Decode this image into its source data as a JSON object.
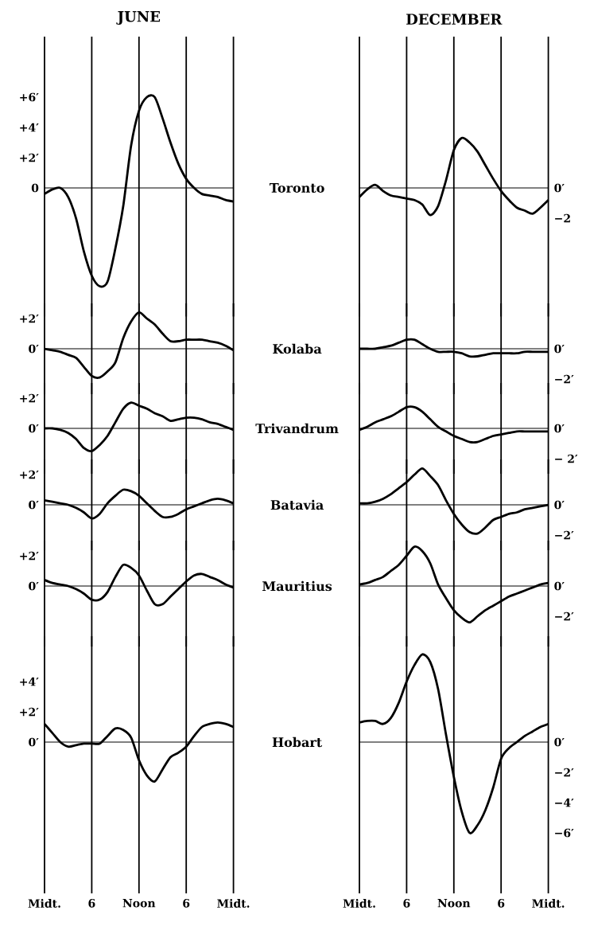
{
  "chart_data": [
    {
      "type": "line",
      "title": "JUNE",
      "annotations": [
        "Toronto"
      ],
      "color": "#000000",
      "categories": [
        null,
        null,
        null,
        null,
        null,
        null,
        null,
        null,
        null,
        null,
        null,
        null,
        null,
        null,
        null,
        null,
        null,
        null,
        null,
        null,
        null,
        null,
        null,
        null,
        null
      ],
      "values": [
        -0.4,
        -0.1,
        0,
        -0.6,
        -2.0,
        -4.2,
        -5.8,
        -6.5,
        -6.2,
        -4.0,
        -1.2,
        2.8,
        5.1,
        6.0,
        6.0,
        4.6,
        3.0,
        1.6,
        0.6,
        0,
        -0.4,
        -0.5,
        -0.6,
        -0.8,
        -0.9
      ],
      "ylim": [
        -8.5,
        10
      ],
      "yticks": [
        {
          "value": 0,
          "label": "0"
        },
        {
          "value": 2,
          "label": "+2′"
        },
        {
          "value": 4,
          "label": "+4′"
        },
        {
          "value": 6,
          "label": "+6′"
        }
      ],
      "grid": "x",
      "ref_lines": [
        {
          "axis": "y",
          "value": 0
        }
      ],
      "tick_labels": "y"
    },
    {
      "type": "line",
      "title": "DECEMBER",
      "color": "#000000",
      "categories": [
        null,
        null,
        null,
        null,
        null,
        null,
        null,
        null,
        null,
        null,
        null,
        null,
        null,
        null,
        null,
        null,
        null,
        null,
        null,
        null,
        null,
        null,
        null,
        null,
        null
      ],
      "values": [
        -0.6,
        -0.1,
        0.2,
        -0.2,
        -0.5,
        -0.6,
        -0.7,
        -0.8,
        -1.1,
        -1.8,
        -1.2,
        0.5,
        2.5,
        3.3,
        3.0,
        2.4,
        1.5,
        0.6,
        -0.2,
        -0.8,
        -1.3,
        -1.5,
        -1.7,
        -1.3,
        -0.8
      ],
      "ylim": [
        -8.5,
        10
      ],
      "yticks": [
        {
          "value": 0,
          "label": "0′"
        },
        {
          "value": -2,
          "label": "−2"
        }
      ],
      "grid": "x",
      "ref_lines": [
        {
          "axis": "y",
          "value": 0
        }
      ],
      "tick_labels": "y"
    },
    {
      "type": "line",
      "annotations": [
        "Kolaba"
      ],
      "color": "#000000",
      "categories": [
        null,
        null,
        null,
        null,
        null,
        null,
        null,
        null,
        null,
        null,
        null,
        null,
        null,
        null,
        null,
        null,
        null,
        null,
        null,
        null,
        null,
        null,
        null,
        null,
        null
      ],
      "values": [
        0,
        -0.1,
        -0.2,
        -0.4,
        -0.6,
        -1.2,
        -1.8,
        -1.9,
        -1.5,
        -0.9,
        0.7,
        1.8,
        2.4,
        2.0,
        1.6,
        1.0,
        0.5,
        0.5,
        0.6,
        0.6,
        0.6,
        0.5,
        0.4,
        0.2,
        -0.1
      ],
      "ylim": [
        -3,
        3
      ],
      "yticks": [
        {
          "value": 0,
          "label": "0′"
        },
        {
          "value": 2,
          "label": "+2′"
        }
      ],
      "grid": "x",
      "ref_lines": [
        {
          "axis": "y",
          "value": 0
        }
      ],
      "tick_labels": "y"
    },
    {
      "type": "line",
      "color": "#000000",
      "categories": [
        null,
        null,
        null,
        null,
        null,
        null,
        null,
        null,
        null,
        null,
        null,
        null,
        null,
        null,
        null,
        null,
        null,
        null,
        null,
        null,
        null,
        null,
        null,
        null,
        null
      ],
      "values": [
        0,
        0,
        0,
        0.1,
        0.2,
        0.4,
        0.6,
        0.6,
        0.3,
        0,
        -0.2,
        -0.2,
        -0.2,
        -0.3,
        -0.5,
        -0.5,
        -0.4,
        -0.3,
        -0.3,
        -0.3,
        -0.3,
        -0.2,
        -0.2,
        -0.2,
        -0.2
      ],
      "ylim": [
        -3,
        3
      ],
      "yticks": [
        {
          "value": 0,
          "label": "0′"
        },
        {
          "value": -2,
          "label": "−2′"
        }
      ],
      "grid": "x",
      "ref_lines": [
        {
          "axis": "y",
          "value": 0
        }
      ],
      "tick_labels": "y"
    },
    {
      "type": "line",
      "annotations": [
        "Trivandrum"
      ],
      "color": "#000000",
      "categories": [
        null,
        null,
        null,
        null,
        null,
        null,
        null,
        null,
        null,
        null,
        null,
        null,
        null,
        null,
        null,
        null,
        null,
        null,
        null,
        null,
        null,
        null,
        null,
        null,
        null
      ],
      "values": [
        0,
        0,
        -0.1,
        -0.3,
        -0.7,
        -1.3,
        -1.5,
        -1.1,
        -0.5,
        0.4,
        1.3,
        1.7,
        1.5,
        1.3,
        1.0,
        0.8,
        0.5,
        0.6,
        0.7,
        0.7,
        0.6,
        0.4,
        0.3,
        0.1,
        -0.1
      ],
      "ylim": [
        -3,
        3
      ],
      "yticks": [
        {
          "value": 0,
          "label": "0′"
        },
        {
          "value": 2,
          "label": "+2′"
        }
      ],
      "grid": "x",
      "ref_lines": [
        {
          "axis": "y",
          "value": 0
        }
      ],
      "tick_labels": "y"
    },
    {
      "type": "line",
      "color": "#000000",
      "categories": [
        null,
        null,
        null,
        null,
        null,
        null,
        null,
        null,
        null,
        null,
        null,
        null,
        null,
        null,
        null,
        null,
        null,
        null,
        null,
        null,
        null,
        null,
        null,
        null,
        null
      ],
      "values": [
        -0.1,
        0.1,
        0.4,
        0.6,
        0.8,
        1.1,
        1.4,
        1.4,
        1.1,
        0.6,
        0.1,
        -0.2,
        -0.5,
        -0.7,
        -0.9,
        -0.9,
        -0.7,
        -0.5,
        -0.4,
        -0.3,
        -0.2,
        -0.2,
        -0.2,
        -0.2,
        -0.2
      ],
      "ylim": [
        -3,
        3
      ],
      "yticks": [
        {
          "value": 0,
          "label": "0′"
        },
        {
          "value": -2,
          "label": "− 2′"
        }
      ],
      "grid": "x",
      "ref_lines": [
        {
          "axis": "y",
          "value": 0
        }
      ],
      "tick_labels": "y"
    },
    {
      "type": "line",
      "annotations": [
        "Batavia"
      ],
      "color": "#000000",
      "categories": [
        null,
        null,
        null,
        null,
        null,
        null,
        null,
        null,
        null,
        null,
        null,
        null,
        null,
        null,
        null,
        null,
        null,
        null,
        null,
        null,
        null,
        null,
        null,
        null,
        null
      ],
      "values": [
        0.3,
        0.2,
        0.1,
        0,
        -0.2,
        -0.5,
        -0.9,
        -0.6,
        0.1,
        0.6,
        1.0,
        0.9,
        0.6,
        0.1,
        -0.4,
        -0.8,
        -0.8,
        -0.6,
        -0.3,
        -0.1,
        0.1,
        0.3,
        0.4,
        0.3,
        0.1
      ],
      "ylim": [
        -3,
        3
      ],
      "yticks": [
        {
          "value": 0,
          "label": "0′"
        },
        {
          "value": 2,
          "label": "+2′"
        }
      ],
      "grid": "x",
      "ref_lines": [
        {
          "axis": "y",
          "value": 0
        }
      ],
      "tick_labels": "y"
    },
    {
      "type": "line",
      "color": "#000000",
      "categories": [
        null,
        null,
        null,
        null,
        null,
        null,
        null,
        null,
        null,
        null,
        null,
        null,
        null,
        null,
        null,
        null,
        null,
        null,
        null,
        null,
        null,
        null,
        null,
        null,
        null
      ],
      "values": [
        0.1,
        0.1,
        0.2,
        0.4,
        0.7,
        1.1,
        1.5,
        2.0,
        2.4,
        1.9,
        1.3,
        0.3,
        -0.6,
        -1.3,
        -1.8,
        -1.9,
        -1.5,
        -1.0,
        -0.8,
        -0.6,
        -0.5,
        -0.3,
        -0.2,
        -0.1,
        0
      ],
      "ylim": [
        -3,
        3
      ],
      "yticks": [
        {
          "value": 0,
          "label": "0′"
        },
        {
          "value": -2,
          "label": "−2′"
        }
      ],
      "grid": "x",
      "ref_lines": [
        {
          "axis": "y",
          "value": 0
        }
      ],
      "tick_labels": "y"
    },
    {
      "type": "line",
      "annotations": [
        "Mauritius"
      ],
      "color": "#000000",
      "categories": [
        null,
        null,
        null,
        null,
        null,
        null,
        null,
        null,
        null,
        null,
        null,
        null,
        null,
        null,
        null,
        null,
        null,
        null,
        null,
        null,
        null,
        null,
        null,
        null,
        null
      ],
      "values": [
        0.4,
        0.2,
        0.1,
        0,
        -0.2,
        -0.5,
        -0.9,
        -0.9,
        -0.4,
        0.6,
        1.4,
        1.2,
        0.7,
        -0.3,
        -1.2,
        -1.2,
        -0.7,
        -0.2,
        0.3,
        0.7,
        0.8,
        0.6,
        0.4,
        0.1,
        -0.1
      ],
      "ylim": [
        -4,
        3
      ],
      "yticks": [
        {
          "value": 0,
          "label": "0′"
        },
        {
          "value": 2,
          "label": "+2′"
        }
      ],
      "grid": "x",
      "ref_lines": [
        {
          "axis": "y",
          "value": 0
        }
      ],
      "tick_labels": "y"
    },
    {
      "type": "line",
      "color": "#000000",
      "categories": [
        null,
        null,
        null,
        null,
        null,
        null,
        null,
        null,
        null,
        null,
        null,
        null,
        null,
        null,
        null,
        null,
        null,
        null,
        null,
        null,
        null,
        null,
        null,
        null,
        null
      ],
      "values": [
        0.1,
        0.2,
        0.4,
        0.6,
        1.0,
        1.4,
        2.0,
        2.6,
        2.3,
        1.5,
        0.1,
        -0.8,
        -1.6,
        -2.1,
        -2.4,
        -2.0,
        -1.6,
        -1.3,
        -1.0,
        -0.7,
        -0.5,
        -0.3,
        -0.1,
        0.1,
        0.2
      ],
      "ylim": [
        -4,
        3
      ],
      "yticks": [
        {
          "value": 0,
          "label": "0′"
        },
        {
          "value": -2,
          "label": "−2′"
        }
      ],
      "grid": "x",
      "ref_lines": [
        {
          "axis": "y",
          "value": 0
        }
      ],
      "tick_labels": "y"
    },
    {
      "type": "line",
      "annotations": [
        "Hobart"
      ],
      "color": "#000000",
      "categories": [
        "Midt.",
        null,
        null,
        null,
        null,
        null,
        "6",
        null,
        null,
        null,
        null,
        null,
        "Noon",
        null,
        null,
        null,
        null,
        null,
        "6",
        null,
        null,
        null,
        null,
        null,
        "Midt."
      ],
      "values": [
        1.2,
        0.6,
        0,
        -0.3,
        -0.2,
        -0.1,
        -0.1,
        -0.1,
        0.4,
        0.9,
        0.8,
        0.3,
        -1.2,
        -2.2,
        -2.6,
        -1.8,
        -1.0,
        -0.7,
        -0.3,
        0.4,
        1.0,
        1.2,
        1.3,
        1.2,
        1.0
      ],
      "ylim": [
        -10,
        7
      ],
      "yticks": [
        {
          "value": 0,
          "label": "0′"
        },
        {
          "value": 2,
          "label": "+2′"
        },
        {
          "value": 4,
          "label": "+4′"
        }
      ],
      "grid": "x",
      "ref_lines": [
        {
          "axis": "y",
          "value": 0
        }
      ]
    },
    {
      "type": "line",
      "color": "#000000",
      "categories": [
        "Midt.",
        null,
        null,
        null,
        null,
        null,
        "6",
        null,
        null,
        null,
        null,
        null,
        "Noon",
        null,
        null,
        null,
        null,
        null,
        "6",
        null,
        null,
        null,
        null,
        null,
        "Midt."
      ],
      "values": [
        1.3,
        1.4,
        1.4,
        1.2,
        1.6,
        2.6,
        4.0,
        5.1,
        5.8,
        5.3,
        3.5,
        0.5,
        -2.3,
        -4.6,
        -6.0,
        -5.5,
        -4.5,
        -3.0,
        -1.1,
        -0.4,
        0,
        0.4,
        0.7,
        1.0,
        1.2
      ],
      "ylim": [
        -10,
        7
      ],
      "yticks": [
        {
          "value": 0,
          "label": "0′"
        },
        {
          "value": -2,
          "label": "−2′"
        },
        {
          "value": -4,
          "label": "−4′"
        },
        {
          "value": -6,
          "label": "−6′"
        }
      ],
      "grid": "x",
      "ref_lines": [
        {
          "axis": "y",
          "value": 0
        }
      ]
    }
  ]
}
